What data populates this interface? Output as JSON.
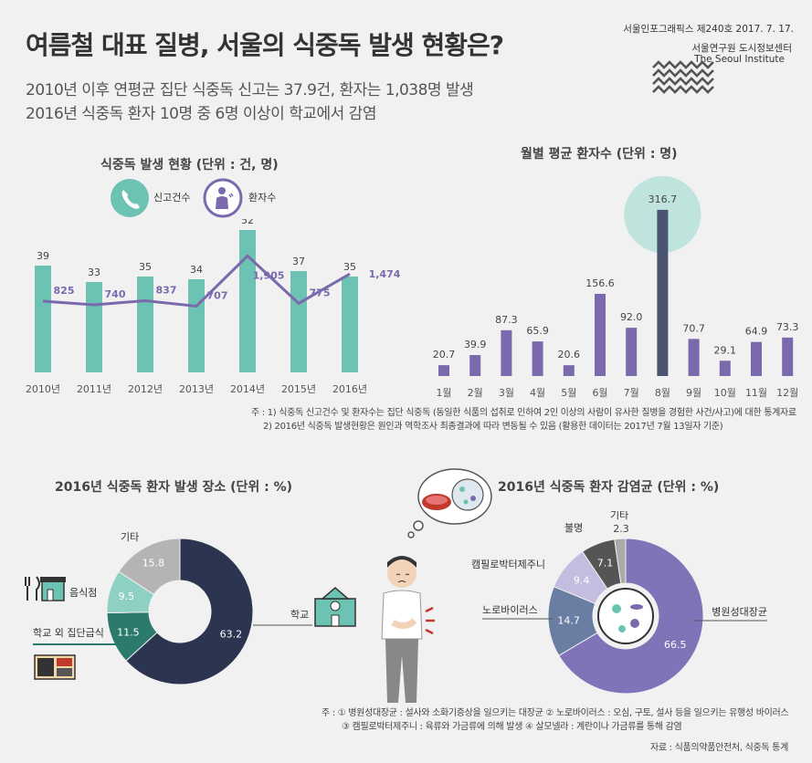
{
  "header": {
    "title": "여름철 대표 질병, 서울의 식중독 발생 현황은?",
    "sub1": "2010년 이후 연평균 집단 식중독 신고는 37.9건, 환자는 1,038명 발생",
    "sub2": "2016년 식중독 환자 10명 중 6명 이상이 학교에서 감염",
    "issue": "서울인포그래픽스 제240호 2017. 7. 17.",
    "org_ko": "서울연구원 도시정보센터",
    "org_en": "The Seoul Institute"
  },
  "colors": {
    "teal": "#6cc3b3",
    "purple": "#7a6aad",
    "navy": "#2b3550",
    "light_teal": "#bfe3dd"
  },
  "chart_data": [
    {
      "type": "bar",
      "title": "식중독 발생 현황 (단위 : 건, 명)",
      "categories": [
        "2010년",
        "2011년",
        "2012년",
        "2013년",
        "2014년",
        "2015년",
        "2016년"
      ],
      "series": [
        {
          "name": "신고건수",
          "type": "bar",
          "values": [
            39,
            33,
            35,
            34,
            52,
            37,
            35
          ],
          "labels": [
            "39",
            "33",
            "35",
            "34",
            "52",
            "37",
            "35"
          ]
        },
        {
          "name": "환자수",
          "type": "line",
          "values": [
            825,
            740,
            837,
            707,
            1905,
            775,
            1474
          ],
          "labels": [
            "825",
            "740",
            "837",
            "707",
            "1,905",
            "775",
            "1,474"
          ]
        }
      ]
    },
    {
      "type": "bar",
      "title": "월별 평균 환자수 (단위 : 명)",
      "categories": [
        "1월",
        "2월",
        "3월",
        "4월",
        "5월",
        "6월",
        "7월",
        "8월",
        "9월",
        "10월",
        "11월",
        "12월"
      ],
      "values": [
        20.7,
        39.9,
        87.3,
        65.9,
        20.6,
        156.6,
        92.0,
        316.7,
        70.7,
        29.1,
        64.9,
        73.3
      ],
      "labels": [
        "20.7",
        "39.9",
        "87.3",
        "65.9",
        "20.6",
        "156.6",
        "92.0",
        "316.7",
        "70.7",
        "29.1",
        "64.9",
        "73.3"
      ]
    },
    {
      "type": "pie",
      "title": "2016년 식중독 환자 발생 장소 (단위 : %)",
      "categories": [
        "학교",
        "학교 외 집단급식",
        "음식점",
        "기타"
      ],
      "values": [
        63.2,
        11.5,
        9.5,
        15.8
      ],
      "labels": [
        "63.2",
        "11.5",
        "9.5",
        "15.8"
      ]
    },
    {
      "type": "pie",
      "title": "2016년 식중독 환자 감염균 (단위 : %)",
      "categories": [
        "병원성대장균",
        "노로바이러스",
        "캠필로박터제주니",
        "불명",
        "기타"
      ],
      "values": [
        66.5,
        14.7,
        9.4,
        7.1,
        2.3
      ],
      "labels": [
        "66.5",
        "14.7",
        "9.4",
        "7.1",
        "2.3"
      ]
    }
  ],
  "notes": {
    "note1": "주 : 1) 식중독 신고건수 및 환자수는 집단 식중독 (동일한 식품의 섭취로 인하여 2인 이상의 사람이 유사한 질병을 경험한 사건/사고)에 대한 통계자료",
    "note2": "2) 2016년 식중독 발생현황은 원인과 역학조사 최종결과에 따라 변동될 수 있음 (활용한 데이터는 2017년 7월 13일자 기준)",
    "note3": "주 : ① 병원성대장균 : 설사와 소화기증상을 일으키는 대장균 ② 노로바이러스 : 오심, 구토, 설사 등을 일으키는 유행성 바이러스",
    "note4": "③ 캠필로박터제주니 : 육류와 가금류에 의해 발생 ④ 살모넬라 : 계란이나 가금류를 통해 감염",
    "source": "자료 : 식품의약품안전처, 식중독 통계"
  }
}
